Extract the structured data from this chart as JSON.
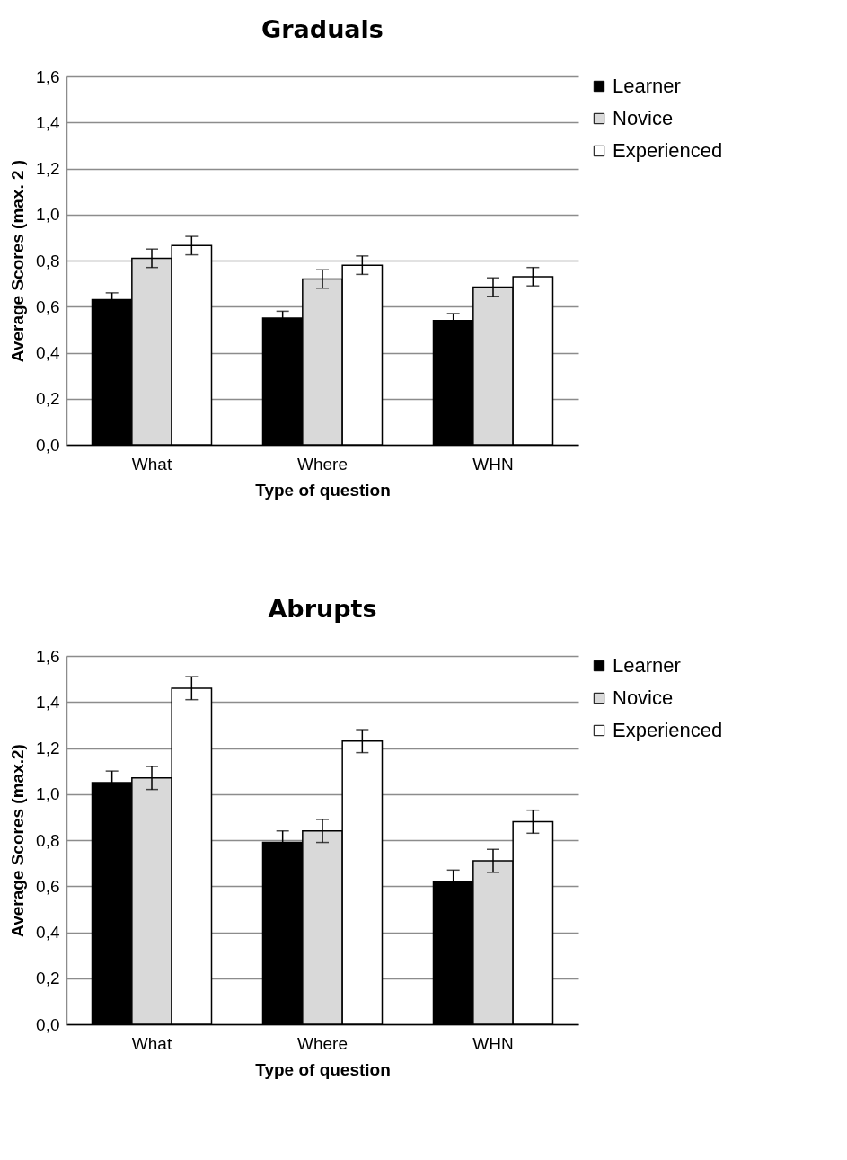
{
  "chart_data": [
    {
      "type": "bar",
      "title": "Graduals",
      "xlabel": "Type of question",
      "ylabel": "Average Scores (max. 2 )",
      "categories": [
        "What",
        "Where",
        "WHN"
      ],
      "series": [
        {
          "name": "Learner",
          "color": "#000000",
          "values": [
            0.63,
            0.55,
            0.54
          ],
          "errors": [
            0.03,
            0.03,
            0.03
          ]
        },
        {
          "name": "Novice",
          "color": "#d9d9d9",
          "values": [
            0.81,
            0.72,
            0.685
          ],
          "errors": [
            0.04,
            0.04,
            0.04
          ]
        },
        {
          "name": "Experienced",
          "color": "#ffffff",
          "values": [
            0.865,
            0.78,
            0.73
          ],
          "errors": [
            0.04,
            0.04,
            0.04
          ]
        }
      ],
      "ylim": [
        0,
        1.6
      ],
      "yticks": [
        {
          "value": 0,
          "label": "0,0"
        },
        {
          "value": 0.2,
          "label": "0,2"
        },
        {
          "value": 0.4,
          "label": "0,4"
        },
        {
          "value": 0.6,
          "label": "0,6"
        },
        {
          "value": 0.8,
          "label": "0,8"
        },
        {
          "value": 1,
          "label": "1,0"
        },
        {
          "value": 1.2,
          "label": "1,2"
        },
        {
          "value": 1.4,
          "label": "1,4"
        },
        {
          "value": 1.6,
          "label": "1,6"
        }
      ],
      "grid": "y",
      "legend": "right"
    },
    {
      "type": "bar",
      "title": "Abrupts",
      "xlabel": "Type of question",
      "ylabel": "Average Scores (max.2)",
      "categories": [
        "What",
        "Where",
        "WHN"
      ],
      "series": [
        {
          "name": "Learner",
          "color": "#000000",
          "values": [
            1.05,
            0.79,
            0.62
          ],
          "errors": [
            0.05,
            0.05,
            0.05
          ]
        },
        {
          "name": "Novice",
          "color": "#d9d9d9",
          "values": [
            1.07,
            0.84,
            0.71
          ],
          "errors": [
            0.05,
            0.05,
            0.05
          ]
        },
        {
          "name": "Experienced",
          "color": "#ffffff",
          "values": [
            1.46,
            1.23,
            0.88
          ],
          "errors": [
            0.05,
            0.05,
            0.05
          ]
        }
      ],
      "ylim": [
        0,
        1.6
      ],
      "yticks": [
        {
          "value": 0,
          "label": "0,0"
        },
        {
          "value": 0.2,
          "label": "0,2"
        },
        {
          "value": 0.4,
          "label": "0,4"
        },
        {
          "value": 0.6,
          "label": "0,6"
        },
        {
          "value": 0.8,
          "label": "0,8"
        },
        {
          "value": 1,
          "label": "1,0"
        },
        {
          "value": 1.2,
          "label": "1,2"
        },
        {
          "value": 1.4,
          "label": "1,4"
        },
        {
          "value": 1.6,
          "label": "1,6"
        }
      ],
      "grid": "y",
      "legend": "right"
    }
  ]
}
